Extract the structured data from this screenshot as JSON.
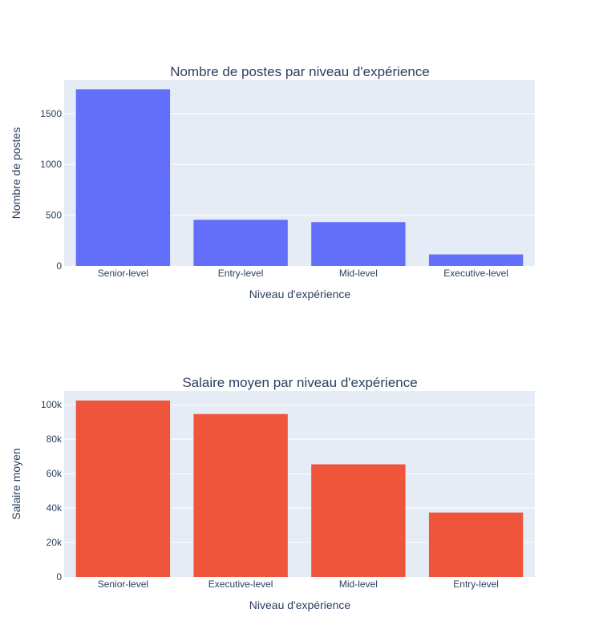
{
  "chart_data": [
    {
      "type": "bar",
      "title": "Nombre de postes par niveau d'expérience",
      "xlabel": "Niveau d'expérience",
      "ylabel": "Nombre de postes",
      "categories": [
        "Senior-level",
        "Entry-level",
        "Mid-level",
        "Executive-level"
      ],
      "values": [
        1740,
        455,
        432,
        114
      ],
      "ylim": [
        0,
        1830
      ],
      "yticks": [
        0,
        500,
        1000,
        1500
      ],
      "ytick_labels": [
        "0",
        "500",
        "1000",
        "1500"
      ],
      "color": "#636efa",
      "grid": true
    },
    {
      "type": "bar",
      "title": "Salaire moyen par niveau d'expérience",
      "xlabel": "Niveau d'expérience",
      "ylabel": "Salaire moyen",
      "categories": [
        "Senior-level",
        "Executive-level",
        "Mid-level",
        "Entry-level"
      ],
      "values": [
        102500,
        94600,
        65400,
        37400
      ],
      "ylim": [
        0,
        108000
      ],
      "yticks": [
        0,
        20000,
        40000,
        60000,
        80000,
        100000
      ],
      "ytick_labels": [
        "0",
        "20k",
        "40k",
        "60k",
        "80k",
        "100k"
      ],
      "color": "#ef553b",
      "grid": true
    }
  ]
}
